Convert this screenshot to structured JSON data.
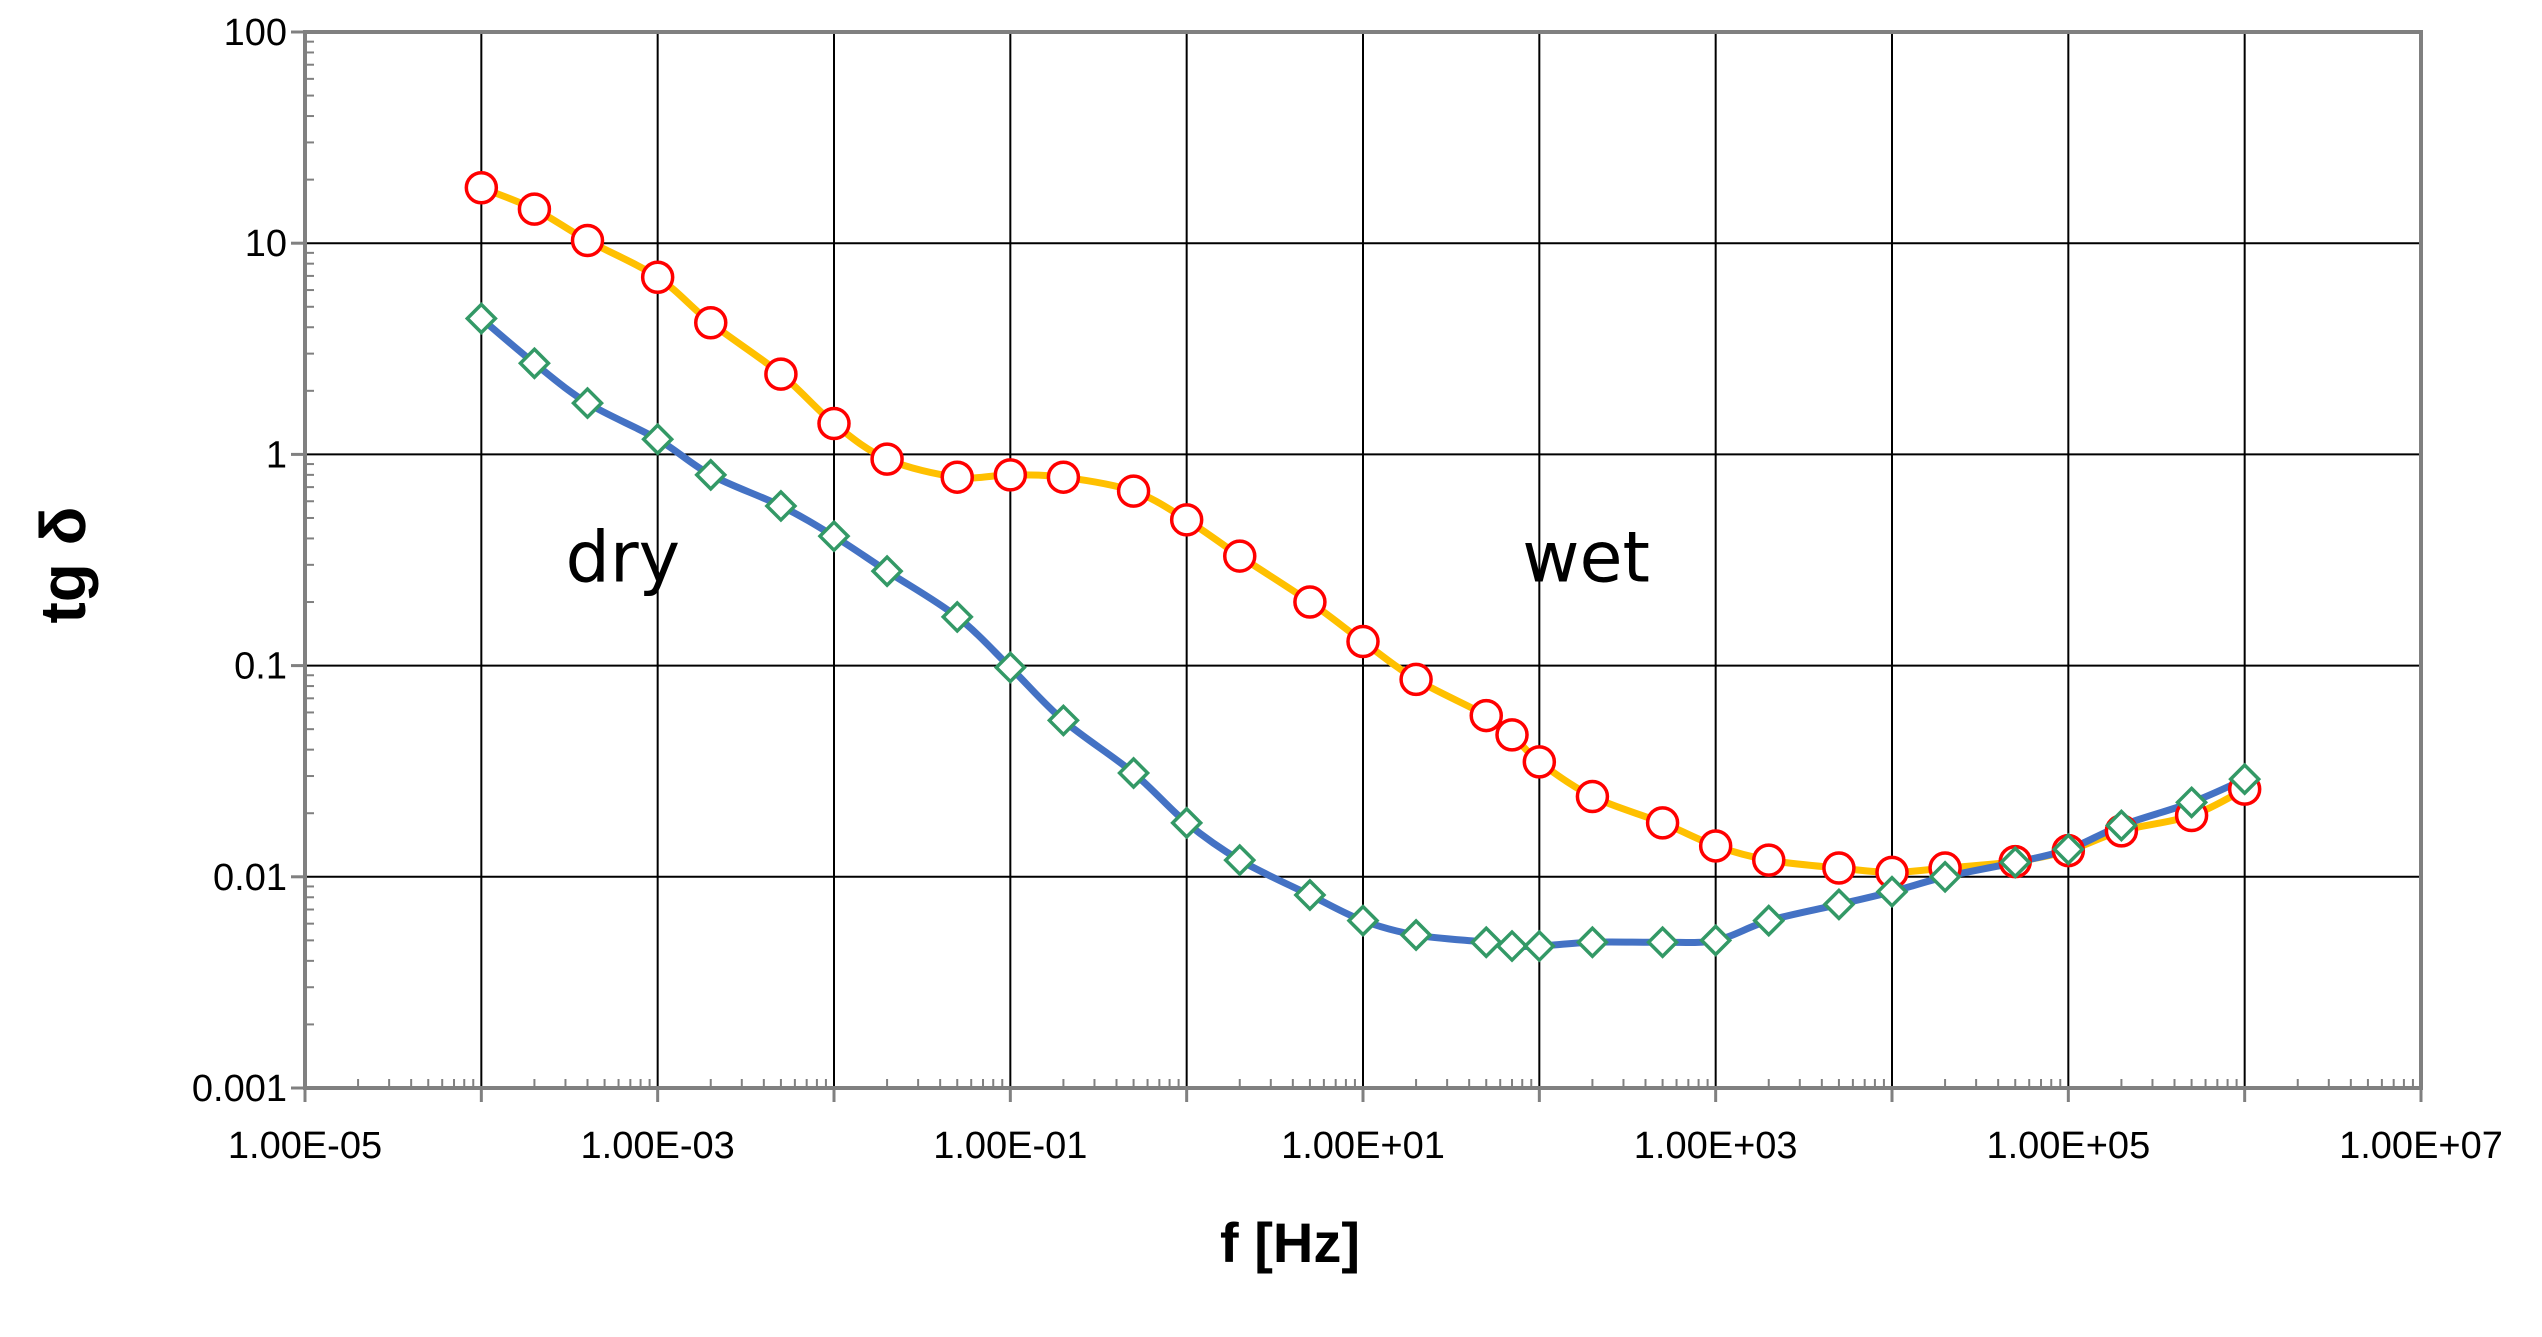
{
  "chart_data": {
    "type": "scatter",
    "xlabel": "f [Hz]",
    "ylabel": "tg δ",
    "xscale": "log",
    "yscale": "log",
    "xlim": [
      1e-05,
      10000000.0
    ],
    "ylim": [
      0.001,
      100
    ],
    "grid": true,
    "legend": "none",
    "x_ticks": [
      "1.00E-05",
      "1.00E-03",
      "1.00E-01",
      "1.00E+01",
      "1.00E+03",
      "1.00E+05",
      "1.00E+07"
    ],
    "y_ticks": [
      "0.001",
      "0.01",
      "0.1",
      "1",
      "10",
      "100"
    ],
    "annotations": [
      {
        "text": "dry",
        "x": 0.0003,
        "y": 0.25
      },
      {
        "text": "wet",
        "x": 80,
        "y": 0.25
      }
    ],
    "series": [
      {
        "line_color": "#FFC000",
        "marker": "circle",
        "marker_edge": "#FF0000",
        "x": [
          0.0001,
          0.0002,
          0.0004,
          0.001,
          0.002,
          0.005,
          0.01,
          0.02,
          0.05,
          0.1,
          0.2,
          0.5,
          1,
          2,
          5,
          10,
          20,
          50,
          70,
          100,
          200,
          500,
          1000,
          2000,
          5000,
          10000,
          20000,
          50000,
          100000,
          200000,
          500000,
          1000000
        ],
        "y": [
          18.3,
          14.5,
          10.3,
          6.9,
          4.2,
          2.4,
          1.4,
          0.95,
          0.78,
          0.8,
          0.78,
          0.67,
          0.49,
          0.33,
          0.2,
          0.13,
          0.086,
          0.058,
          0.047,
          0.035,
          0.024,
          0.018,
          0.014,
          0.012,
          0.011,
          0.0105,
          0.011,
          0.0118,
          0.0133,
          0.0165,
          0.0195,
          0.026
        ]
      },
      {
        "line_color": "#4472C4",
        "marker": "diamond",
        "marker_edge": "#339966",
        "x": [
          0.0001,
          0.0002,
          0.0004,
          0.001,
          0.002,
          0.005,
          0.01,
          0.02,
          0.05,
          0.1,
          0.2,
          0.5,
          1,
          2,
          5,
          10,
          20,
          50,
          70,
          100,
          200,
          500,
          1000,
          2000,
          5000,
          10000,
          20000,
          50000,
          100000,
          200000,
          500000,
          1000000
        ],
        "y": [
          4.4,
          2.7,
          1.75,
          1.18,
          0.8,
          0.57,
          0.41,
          0.28,
          0.17,
          0.098,
          0.055,
          0.031,
          0.018,
          0.012,
          0.0082,
          0.0062,
          0.0053,
          0.0049,
          0.0047,
          0.0047,
          0.0049,
          0.0049,
          0.005,
          0.0062,
          0.0074,
          0.0085,
          0.01,
          0.0117,
          0.0135,
          0.0175,
          0.0225,
          0.029
        ]
      }
    ]
  }
}
